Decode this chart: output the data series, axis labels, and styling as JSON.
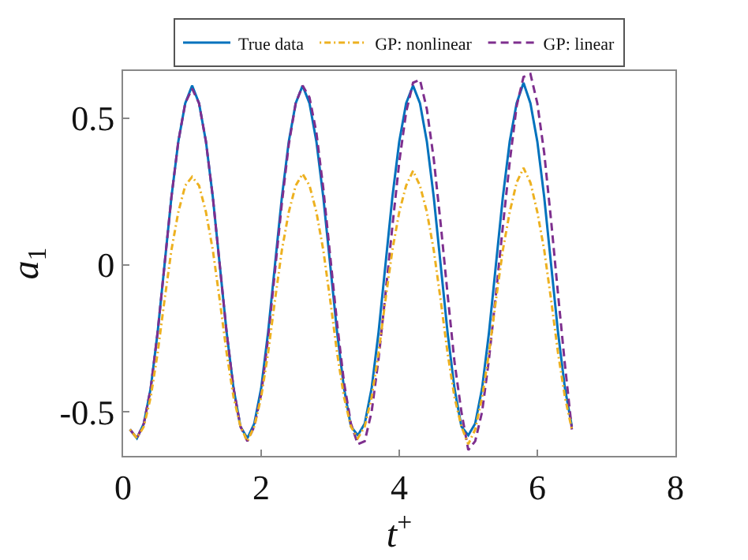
{
  "chart_data": {
    "type": "line",
    "xlabel": "t$^{+}$",
    "ylabel": "a$_{1}$",
    "x": [
      0.1,
      0.2,
      0.3,
      0.4,
      0.5,
      0.6,
      0.7,
      0.8,
      0.9,
      1.0,
      1.1,
      1.2,
      1.3,
      1.4,
      1.5,
      1.6,
      1.7,
      1.8,
      1.9,
      2.0,
      2.1,
      2.2,
      2.3,
      2.4,
      2.5,
      2.6,
      2.7,
      2.8,
      2.9,
      3.0,
      3.1,
      3.2,
      3.3,
      3.4,
      3.5,
      3.6,
      3.7,
      3.8,
      3.9,
      4.0,
      4.1,
      4.2,
      4.3,
      4.4,
      4.5,
      4.6,
      4.7,
      4.8,
      4.9,
      5.0,
      5.1,
      5.2,
      5.3,
      5.4,
      5.5,
      5.6,
      5.7,
      5.8,
      5.9,
      6.0,
      6.1,
      6.2,
      6.3,
      6.4,
      6.5
    ],
    "series": [
      {
        "name": "True data",
        "color": "#0072bd",
        "line_style": "solid",
        "values": [
          -0.56,
          -0.59,
          -0.54,
          -0.42,
          -0.23,
          0,
          0.23,
          0.42,
          0.55,
          0.61,
          0.55,
          0.42,
          0.23,
          0,
          -0.23,
          -0.42,
          -0.55,
          -0.59,
          -0.54,
          -0.42,
          -0.23,
          0,
          0.23,
          0.42,
          0.55,
          0.61,
          0.55,
          0.42,
          0.23,
          0,
          -0.23,
          -0.42,
          -0.55,
          -0.58,
          -0.54,
          -0.42,
          -0.23,
          0,
          0.23,
          0.42,
          0.55,
          0.61,
          0.55,
          0.42,
          0.23,
          0,
          -0.23,
          -0.42,
          -0.55,
          -0.58,
          -0.54,
          -0.42,
          -0.23,
          0,
          0.23,
          0.42,
          0.55,
          0.62,
          0.55,
          0.42,
          0.23,
          0,
          -0.23,
          -0.42,
          -0.55
        ]
      },
      {
        "name": "GP: nonlinear",
        "color": "#edb120",
        "line_style": "dashdot",
        "values": [
          -0.56,
          -0.59,
          -0.55,
          -0.45,
          -0.3,
          -0.12,
          0.05,
          0.18,
          0.27,
          0.3,
          0.27,
          0.18,
          0.05,
          -0.12,
          -0.3,
          -0.45,
          -0.55,
          -0.6,
          -0.55,
          -0.45,
          -0.3,
          -0.12,
          0.05,
          0.18,
          0.27,
          0.31,
          0.27,
          0.18,
          0.05,
          -0.12,
          -0.3,
          -0.45,
          -0.55,
          -0.59,
          -0.55,
          -0.45,
          -0.3,
          -0.12,
          0.05,
          0.18,
          0.27,
          0.32,
          0.27,
          0.18,
          0.05,
          -0.12,
          -0.3,
          -0.45,
          -0.55,
          -0.61,
          -0.56,
          -0.45,
          -0.3,
          -0.12,
          0.05,
          0.18,
          0.28,
          0.33,
          0.28,
          0.18,
          0.05,
          -0.12,
          -0.3,
          -0.45,
          -0.56
        ]
      },
      {
        "name": "GP: linear",
        "color": "#7e2f8e",
        "line_style": "dashed",
        "values": [
          -0.56,
          -0.59,
          -0.54,
          -0.42,
          -0.23,
          0,
          0.23,
          0.42,
          0.55,
          0.6,
          0.55,
          0.42,
          0.23,
          0,
          -0.23,
          -0.42,
          -0.55,
          -0.6,
          -0.55,
          -0.44,
          -0.25,
          -0.02,
          0.21,
          0.41,
          0.55,
          0.61,
          0.57,
          0.45,
          0.26,
          0.03,
          -0.2,
          -0.4,
          -0.54,
          -0.61,
          -0.6,
          -0.5,
          -0.32,
          -0.1,
          0.13,
          0.35,
          0.52,
          0.62,
          0.63,
          0.53,
          0.36,
          0.14,
          -0.1,
          -0.33,
          -0.5,
          -0.63,
          -0.6,
          -0.5,
          -0.32,
          -0.1,
          0.13,
          0.35,
          0.54,
          0.64,
          0.65,
          0.55,
          0.38,
          0.15,
          -0.1,
          -0.34,
          -0.56
        ]
      }
    ],
    "xlim": [
      0,
      8
    ],
    "xticks": [
      0,
      2,
      4,
      6,
      8
    ],
    "ylim": [
      -0.65,
      0.66
    ],
    "yticks": [
      {
        "value": -0.5,
        "label": "-0.5"
      },
      0,
      0.5
    ],
    "legend": "top",
    "marker": "none"
  }
}
